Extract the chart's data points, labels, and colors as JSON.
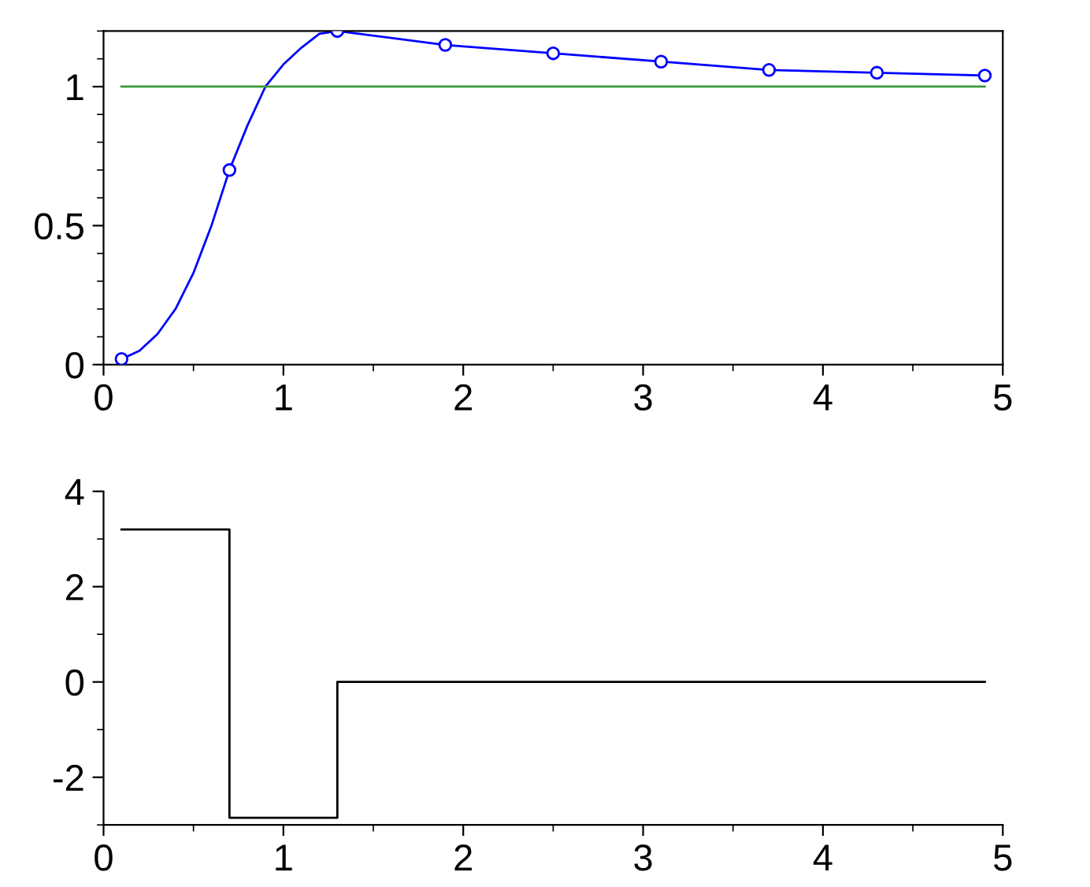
{
  "chart_data": [
    {
      "type": "line",
      "xlim": [
        0,
        5
      ],
      "xticks": [
        0,
        1,
        2,
        3,
        4,
        5
      ],
      "ylim": [
        0,
        1.2
      ],
      "yticks": [
        0,
        0.5,
        1
      ],
      "grid": false,
      "legend": false,
      "series": [
        {
          "type": "line",
          "color": "#0000ff",
          "marker": "none",
          "x": [
            0.1,
            0.2,
            0.3,
            0.4,
            0.5,
            0.6,
            0.7,
            0.8,
            0.9,
            1.0,
            1.1,
            1.2,
            1.3,
            1.9,
            2.5,
            3.1,
            3.7,
            4.3,
            4.9
          ],
          "values": [
            0.02,
            0.05,
            0.11,
            0.2,
            0.33,
            0.5,
            0.7,
            0.86,
            1.0,
            1.08,
            1.14,
            1.19,
            1.2,
            1.15,
            1.12,
            1.09,
            1.06,
            1.05,
            1.04
          ]
        },
        {
          "type": "scatter",
          "color": "#0000ff",
          "marker": "circle",
          "x": [
            0.1,
            0.7,
            1.3,
            1.9,
            2.5,
            3.1,
            3.7,
            4.3,
            4.9
          ],
          "values": [
            0.02,
            0.7,
            1.2,
            1.15,
            1.12,
            1.09,
            1.06,
            1.05,
            1.04
          ]
        },
        {
          "type": "line",
          "color": "#3a9a3a",
          "marker": "none",
          "x": [
            0.1,
            4.9
          ],
          "values": [
            1,
            1
          ]
        }
      ]
    },
    {
      "type": "step",
      "xlim": [
        0,
        5
      ],
      "xticks": [
        0,
        1,
        2,
        3,
        4,
        5
      ],
      "ylim": [
        -3,
        4
      ],
      "yticks": [
        -2,
        0,
        2,
        4
      ],
      "grid": false,
      "legend": false,
      "series": [
        {
          "type": "step",
          "color": "#000000",
          "marker": "none",
          "x": [
            0.1,
            0.7,
            1.3,
            4.9
          ],
          "values": [
            3.2,
            -2.85,
            0,
            0
          ]
        }
      ]
    }
  ]
}
